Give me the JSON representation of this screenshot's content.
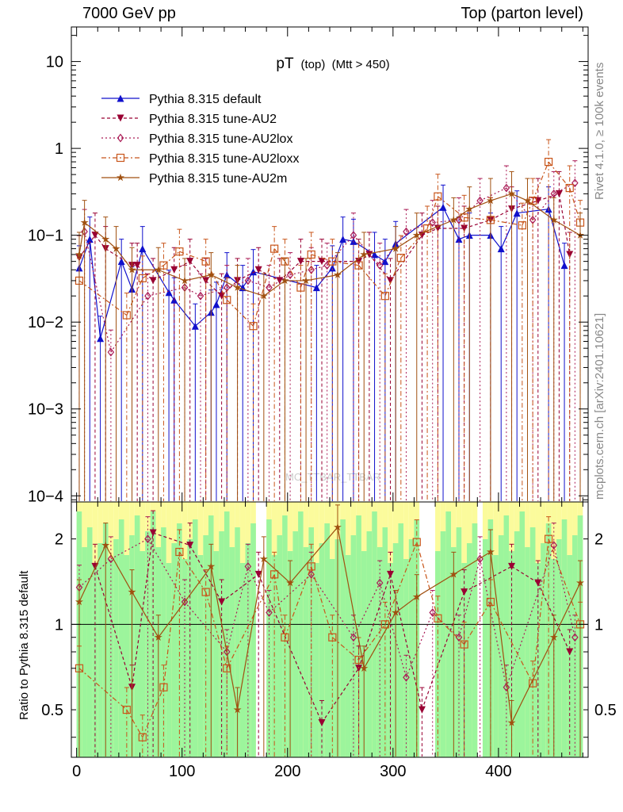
{
  "header": {
    "left": "7000 GeV pp",
    "right": "Top (parton level)"
  },
  "side_labels": {
    "rivet": "Rivet 4.1.0, ≥ 100k events",
    "mcplots": "mcplots.cern.ch [arXiv:2401.10621]"
  },
  "watermark": "MC_TTBAR_TTBAR",
  "colors": {
    "default": "#1010cc",
    "au2": "#990033",
    "au2lox": "#aa1a55",
    "au2loxx": "#c8551a",
    "au2m": "#a05010",
    "band_green": "#9cf59c",
    "band_yellow": "#fbfb9c"
  },
  "chart_data": [
    {
      "type": "line",
      "title": "pT",
      "title_parts": [
        "pT",
        "(top)",
        "(Mtt > 450)"
      ],
      "xlim": [
        -5,
        485
      ],
      "ylim": [
        8.5e-05,
        25
      ],
      "yscale": "log",
      "ytick_labels": [
        "10",
        "1",
        "10−1",
        "10−2",
        "10−3",
        "10−4"
      ],
      "ytick_values": [
        10,
        1,
        0.1,
        0.01,
        0.001,
        0.0001
      ],
      "legend": [
        "Pythia 8.315 default",
        "Pythia 8.315 tune-AU2",
        "Pythia 8.315 tune-AU2lox",
        "Pythia 8.315 tune-AU2loxx",
        "Pythia 8.315 tune-AU2m"
      ],
      "legend_position": "top-left",
      "series": [
        {
          "name": "Pythia 8.315 default",
          "marker": "triangle-up",
          "points": [
            [
              2.5,
              0.042
            ],
            [
              12.5,
              0.09
            ],
            [
              22.5,
              0.0065
            ],
            [
              42.5,
              0.05
            ],
            [
              52.5,
              0.024
            ],
            [
              62.5,
              0.07
            ],
            [
              87.5,
              0.022
            ],
            [
              92.5,
              0.018
            ],
            [
              112.5,
              0.009
            ],
            [
              127.5,
              0.013
            ],
            [
              132.5,
              0.016
            ],
            [
              142.5,
              0.035
            ],
            [
              157.5,
              0.025
            ],
            [
              167.5,
              0.038
            ],
            [
              227.5,
              0.025
            ],
            [
              242.5,
              0.042
            ],
            [
              252.5,
              0.09
            ],
            [
              262.5,
              0.085
            ],
            [
              282.5,
              0.06
            ],
            [
              292.5,
              0.05
            ],
            [
              302.5,
              0.08
            ],
            [
              347.5,
              0.21
            ],
            [
              362.5,
              0.09
            ],
            [
              372.5,
              0.1
            ],
            [
              392.5,
              0.1
            ],
            [
              402.5,
              0.07
            ],
            [
              417.5,
              0.18
            ],
            [
              447.5,
              0.2
            ],
            [
              462.5,
              0.045
            ]
          ]
        },
        {
          "name": "Pythia 8.315 tune-AU2",
          "marker": "triangle-down",
          "points": [
            [
              2.5,
              0.055
            ],
            [
              17.5,
              0.1
            ],
            [
              27.5,
              0.07
            ],
            [
              52.5,
              0.045
            ],
            [
              57.5,
              0.045
            ],
            [
              72.5,
              0.03
            ],
            [
              92.5,
              0.04
            ],
            [
              107.5,
              0.05
            ],
            [
              122.5,
              0.03
            ],
            [
              137.5,
              0.02
            ],
            [
              152.5,
              0.03
            ],
            [
              172.5,
              0.04
            ],
            [
              192.5,
              0.03
            ],
            [
              212.5,
              0.05
            ],
            [
              232.5,
              0.05
            ],
            [
              267.5,
              0.05
            ],
            [
              277.5,
              0.06
            ],
            [
              297.5,
              0.03
            ],
            [
              327.5,
              0.1
            ],
            [
              342.5,
              0.12
            ],
            [
              367.5,
              0.12
            ],
            [
              392.5,
              0.15
            ],
            [
              412.5,
              0.2
            ],
            [
              437.5,
              0.25
            ],
            [
              457.5,
              0.3
            ],
            [
              467.5,
              0.06
            ]
          ]
        },
        {
          "name": "Pythia 8.315 tune-AU2lox",
          "marker": "diamond",
          "points": [
            [
              7.5,
              0.11
            ],
            [
              32.5,
              0.0045
            ],
            [
              67.5,
              0.02
            ],
            [
              102.5,
              0.025
            ],
            [
              117.5,
              0.02
            ],
            [
              142.5,
              0.025
            ],
            [
              162.5,
              0.03
            ],
            [
              182.5,
              0.025
            ],
            [
              202.5,
              0.035
            ],
            [
              222.5,
              0.04
            ],
            [
              237.5,
              0.045
            ],
            [
              262.5,
              0.1
            ],
            [
              287.5,
              0.045
            ],
            [
              312.5,
              0.11
            ],
            [
              337.5,
              0.14
            ],
            [
              362.5,
              0.15
            ],
            [
              382.5,
              0.25
            ],
            [
              407.5,
              0.35
            ],
            [
              432.5,
              0.15
            ],
            [
              452.5,
              0.3
            ],
            [
              472.5,
              0.4
            ]
          ]
        },
        {
          "name": "Pythia 8.315 tune-AU2loxx",
          "marker": "square-open",
          "points": [
            [
              2.5,
              0.03
            ],
            [
              47.5,
              0.012
            ],
            [
              62.5,
              0.032
            ],
            [
              82.5,
              0.045
            ],
            [
              97.5,
              0.065
            ],
            [
              122.5,
              0.05
            ],
            [
              142.5,
              0.018
            ],
            [
              167.5,
              0.009
            ],
            [
              187.5,
              0.07
            ],
            [
              197.5,
              0.05
            ],
            [
              212.5,
              0.025
            ],
            [
              222.5,
              0.06
            ],
            [
              242.5,
              0.05
            ],
            [
              267.5,
              0.045
            ],
            [
              292.5,
              0.02
            ],
            [
              307.5,
              0.055
            ],
            [
              332.5,
              0.12
            ],
            [
              342.5,
              0.28
            ],
            [
              367.5,
              0.16
            ],
            [
              392.5,
              0.15
            ],
            [
              422.5,
              0.13
            ],
            [
              432.5,
              0.25
            ],
            [
              447.5,
              0.7
            ],
            [
              467.5,
              0.35
            ],
            [
              477.5,
              0.14
            ]
          ]
        },
        {
          "name": "Pythia 8.315 tune-AU2m",
          "marker": "star",
          "points": [
            [
              2.5,
              0.06
            ],
            [
              7.5,
              0.14
            ],
            [
              27.5,
              0.09
            ],
            [
              37.5,
              0.07
            ],
            [
              52.5,
              0.04
            ],
            [
              77.5,
              0.04
            ],
            [
              102.5,
              0.03
            ],
            [
              127.5,
              0.035
            ],
            [
              152.5,
              0.025
            ],
            [
              177.5,
              0.02
            ],
            [
              197.5,
              0.03
            ],
            [
              217.5,
              0.03
            ],
            [
              247.5,
              0.035
            ],
            [
              272.5,
              0.06
            ],
            [
              302.5,
              0.07
            ],
            [
              322.5,
              0.1
            ],
            [
              357.5,
              0.15
            ],
            [
              372.5,
              0.2
            ],
            [
              392.5,
              0.25
            ],
            [
              412.5,
              0.3
            ],
            [
              427.5,
              0.25
            ],
            [
              452.5,
              0.15
            ],
            [
              477.5,
              0.1
            ]
          ]
        }
      ]
    },
    {
      "type": "line",
      "title": "Ratio to Pythia 8.315 default",
      "ylabel": "Ratio to Pythia 8.315 default",
      "xlim": [
        -5,
        485
      ],
      "ylim": [
        0.34,
        2.7
      ],
      "yscale": "log",
      "reference_line": 1,
      "ytick_labels": [
        "2",
        "1",
        "0.5"
      ],
      "ytick_values": [
        2,
        1,
        0.5
      ],
      "xtick_labels": [
        "0",
        "100",
        "200",
        "300",
        "400"
      ],
      "xtick_values": [
        0,
        100,
        200,
        300,
        400
      ],
      "series": [
        {
          "name": "Pythia 8.315 tune-AU2",
          "marker": "triangle-down",
          "points": [
            [
              17.5,
              1.6
            ],
            [
              52.5,
              0.6
            ],
            [
              72.5,
              2.1
            ],
            [
              107.5,
              1.9
            ],
            [
              137.5,
              1.2
            ],
            [
              172.5,
              1.5
            ],
            [
              232.5,
              0.45
            ],
            [
              267.5,
              0.7
            ],
            [
              297.5,
              1.5
            ],
            [
              327.5,
              0.5
            ],
            [
              367.5,
              1.3
            ],
            [
              412.5,
              1.6
            ],
            [
              437.5,
              1.4
            ],
            [
              467.5,
              0.8
            ]
          ]
        },
        {
          "name": "Pythia 8.315 tune-AU2lox",
          "marker": "diamond",
          "points": [
            [
              2.5,
              1.35
            ],
            [
              32.5,
              1.7
            ],
            [
              67.5,
              2.0
            ],
            [
              102.5,
              1.2
            ],
            [
              142.5,
              0.8
            ],
            [
              162.5,
              1.6
            ],
            [
              182.5,
              1.1
            ],
            [
              222.5,
              1.5
            ],
            [
              262.5,
              0.9
            ],
            [
              287.5,
              1.4
            ],
            [
              312.5,
              0.65
            ],
            [
              337.5,
              1.1
            ],
            [
              362.5,
              0.9
            ],
            [
              382.5,
              1.7
            ],
            [
              407.5,
              0.6
            ],
            [
              452.5,
              1.9
            ],
            [
              472.5,
              0.9
            ]
          ]
        },
        {
          "name": "Pythia 8.315 tune-AU2loxx",
          "marker": "square-open",
          "points": [
            [
              2.5,
              0.7
            ],
            [
              47.5,
              0.5
            ],
            [
              62.5,
              0.4
            ],
            [
              82.5,
              0.6
            ],
            [
              97.5,
              1.8
            ],
            [
              122.5,
              1.3
            ],
            [
              142.5,
              0.7
            ],
            [
              187.5,
              1.5
            ],
            [
              197.5,
              0.9
            ],
            [
              222.5,
              1.6
            ],
            [
              242.5,
              0.9
            ],
            [
              267.5,
              0.75
            ],
            [
              292.5,
              1.0
            ],
            [
              322.5,
              1.95
            ],
            [
              342.5,
              1.05
            ],
            [
              367.5,
              0.85
            ],
            [
              392.5,
              1.2
            ],
            [
              432.5,
              0.62
            ],
            [
              447.5,
              2.0
            ],
            [
              477.5,
              1.0
            ]
          ]
        },
        {
          "name": "Pythia 8.315 tune-AU2m",
          "marker": "star",
          "points": [
            [
              2.5,
              1.2
            ],
            [
              27.5,
              1.9
            ],
            [
              52.5,
              1.3
            ],
            [
              77.5,
              0.9
            ],
            [
              127.5,
              1.6
            ],
            [
              152.5,
              0.5
            ],
            [
              177.5,
              1.7
            ],
            [
              202.5,
              1.4
            ],
            [
              247.5,
              2.2
            ],
            [
              272.5,
              0.7
            ],
            [
              302.5,
              1.1
            ],
            [
              322.5,
              1.25
            ],
            [
              357.5,
              1.5
            ],
            [
              392.5,
              1.8
            ],
            [
              412.5,
              0.45
            ],
            [
              452.5,
              0.9
            ],
            [
              477.5,
              1.4
            ]
          ]
        }
      ]
    }
  ]
}
